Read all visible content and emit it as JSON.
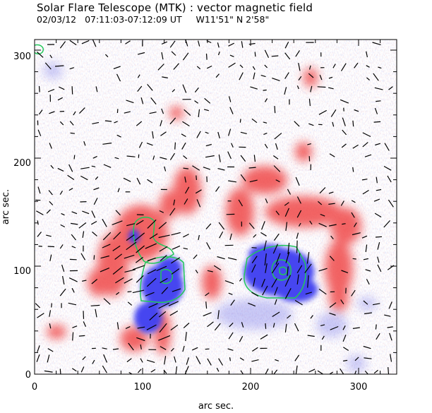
{
  "title": "Solar Flare Telescope (MTK) : vector magnetic field",
  "subtitle": {
    "date": "02/03/12",
    "time_range": "07:11:03-07:12:09 UT",
    "position": "W11'51\"  N 2'58\""
  },
  "axes": {
    "xlabel": "arc sec.",
    "ylabel": "arc sec.",
    "x_ticks": [
      "0",
      "100",
      "200",
      "300"
    ],
    "y_ticks": [
      "0",
      "100",
      "200",
      "300"
    ]
  },
  "colors": {
    "positive_polarity": "#f04a4a",
    "negative_polarity": "#3c3cf0",
    "contour": "#22c85a",
    "vector": "#000000"
  }
}
